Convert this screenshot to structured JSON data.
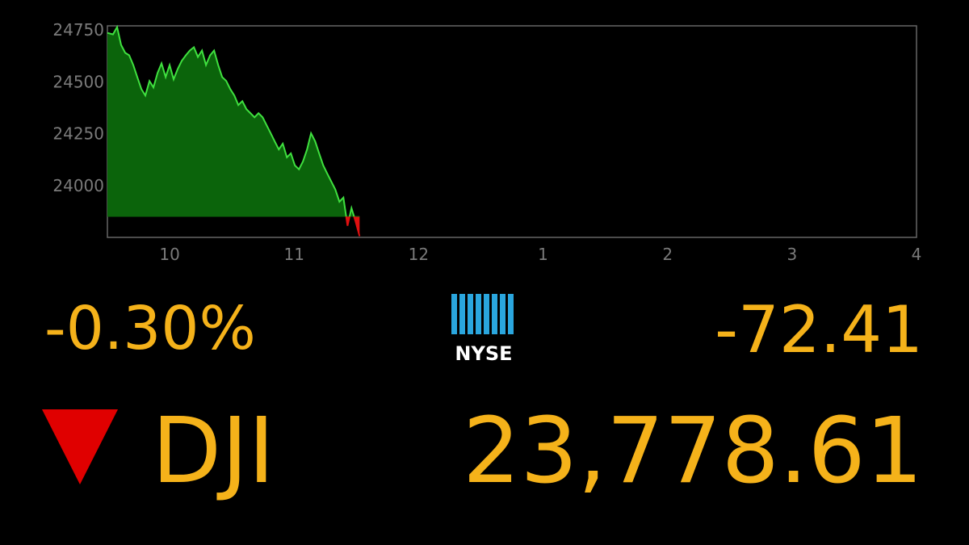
{
  "chart_data": {
    "type": "area",
    "x": [
      9.5,
      9.545,
      9.578,
      9.61,
      9.643,
      9.675,
      9.708,
      9.74,
      9.773,
      9.805,
      9.838,
      9.87,
      9.903,
      9.935,
      9.968,
      10.0,
      10.032,
      10.065,
      10.097,
      10.13,
      10.162,
      10.195,
      10.227,
      10.26,
      10.292,
      10.325,
      10.357,
      10.39,
      10.422,
      10.455,
      10.487,
      10.52,
      10.552,
      10.584,
      10.617,
      10.649,
      10.682,
      10.714,
      10.747,
      10.779,
      10.812,
      10.844,
      10.877,
      10.909,
      10.942,
      10.974,
      11.006,
      11.039,
      11.071,
      11.104,
      11.136,
      11.169,
      11.201,
      11.234,
      11.266,
      11.299,
      11.331,
      11.364,
      11.396,
      11.429,
      11.461,
      11.494,
      11.526
    ],
    "values": [
      24736,
      24729,
      24764,
      24678,
      24640,
      24628,
      24581,
      24523,
      24465,
      24434,
      24504,
      24473,
      24543,
      24589,
      24523,
      24581,
      24512,
      24562,
      24601,
      24628,
      24651,
      24667,
      24620,
      24651,
      24581,
      24628,
      24651,
      24581,
      24523,
      24504,
      24465,
      24434,
      24388,
      24407,
      24368,
      24349,
      24329,
      24349,
      24329,
      24291,
      24252,
      24213,
      24174,
      24202,
      24136,
      24155,
      24097,
      24078,
      24116,
      24174,
      24252,
      24213,
      24155,
      24097,
      24058,
      24019,
      23981,
      23922,
      23942,
      23806,
      23891,
      23826,
      23756
    ],
    "baseline": 23851,
    "color_up": "#3fe03f",
    "fill_up": "#0b640b",
    "color_down": "#e01010",
    "xlim": [
      9.5,
      16
    ],
    "ylim": [
      23750,
      24770
    ],
    "xticks": [
      10,
      11,
      12,
      {
        "value": 13,
        "label": "1"
      },
      {
        "value": 14,
        "label": "2"
      },
      {
        "value": 15,
        "label": "3"
      },
      {
        "value": 16,
        "label": "4"
      }
    ],
    "yticks": [
      24000,
      24250,
      24500,
      24750
    ]
  },
  "ticker": {
    "change_percent": "-0.30%",
    "exchange": "NYSE",
    "change": "-72.41",
    "symbol": "DJI",
    "price": "23,778.61"
  }
}
